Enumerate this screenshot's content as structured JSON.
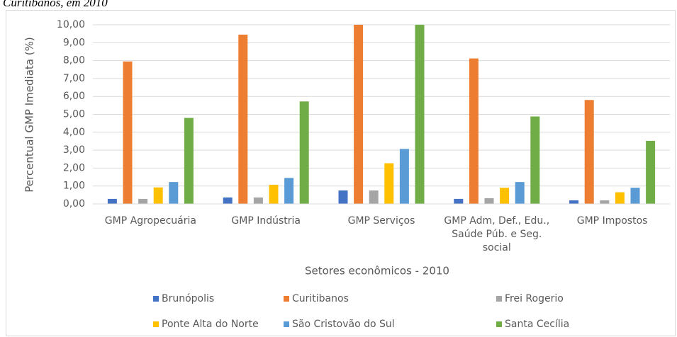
{
  "chart_data": {
    "type": "bar",
    "caption": "Curitibanos, em 2010",
    "x_label": "Setores econômicos - 2010",
    "y_label": "Percentual GMP Imediata (%)",
    "categories": [
      "GMP Agropecuária",
      "GMP Indústria",
      "GMP Serviços",
      "GMP Adm,  Def., Edu., Saúde Púb. e Seg. social",
      "GMP Impostos"
    ],
    "series": [
      {
        "name": "Brunópolis",
        "color": "#4472c4",
        "values": [
          0.28,
          0.36,
          0.75,
          0.28,
          0.2
        ]
      },
      {
        "name": "Curitibanos",
        "color": "#ed7d31",
        "values": [
          7.95,
          9.45,
          10.0,
          8.12,
          5.8
        ]
      },
      {
        "name": "Frei Rogerio",
        "color": "#a5a5a5",
        "values": [
          0.28,
          0.36,
          0.75,
          0.32,
          0.2
        ]
      },
      {
        "name": "Ponte Alta do Norte",
        "color": "#ffc000",
        "values": [
          0.92,
          1.07,
          2.27,
          0.9,
          0.65
        ]
      },
      {
        "name": "São Cristovão do Sul",
        "color": "#5b9bd5",
        "values": [
          1.22,
          1.45,
          3.07,
          1.22,
          0.9
        ]
      },
      {
        "name": "Santa Cecília",
        "color": "#70ad47",
        "values": [
          4.8,
          5.72,
          10.0,
          4.88,
          3.52
        ]
      }
    ],
    "ylim": [
      0,
      10
    ],
    "yticks": [
      {
        "value": 0,
        "label": "0,00"
      },
      {
        "value": 1,
        "label": "1,00"
      },
      {
        "value": 2,
        "label": "2,00"
      },
      {
        "value": 3,
        "label": "3,00"
      },
      {
        "value": 4,
        "label": "4,00"
      },
      {
        "value": 5,
        "label": "5,00"
      },
      {
        "value": 6,
        "label": "6,00"
      },
      {
        "value": 7,
        "label": "7,00"
      },
      {
        "value": 8,
        "label": "8,00"
      },
      {
        "value": 9,
        "label": "9,00"
      },
      {
        "value": 10,
        "label": "10,00"
      }
    ],
    "grid": true,
    "legend": "bottom"
  }
}
